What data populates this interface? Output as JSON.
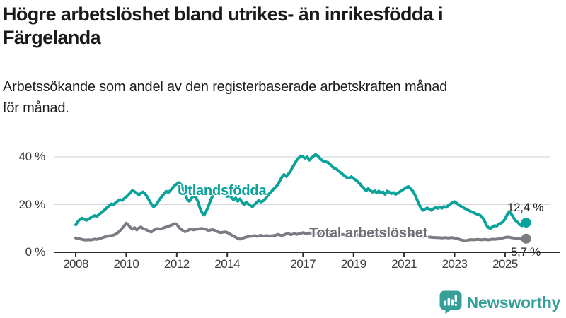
{
  "header": {
    "title_lines": [
      "Högre arbetslöshet bland utrikes- än inrikesfödda i",
      "Färgelanda"
    ],
    "subtitle_lines": [
      "Arbetssökande som andel av den registerbaserade arbetskraften månad",
      "för månad."
    ]
  },
  "chart_data": {
    "type": "line",
    "title": "Högre arbetslöshet bland utrikes- än inrikesfödda i Färgelanda",
    "subtitle": "Arbetssökande som andel av den registerbaserade arbetskraften månad för månad.",
    "frequency": "monthly",
    "x_start": "2008-01",
    "x_end": "2025-11",
    "x_tick_labels": [
      "2008",
      "2010",
      "2012",
      "2014",
      "2017",
      "2019",
      "2021",
      "2023",
      "2025"
    ],
    "y_ticks": [
      0,
      20,
      40
    ],
    "y_tick_labels": [
      "0 %",
      "20 %",
      "40 %"
    ],
    "ylim": [
      0,
      45
    ],
    "unit": "%",
    "grid": "horizontal",
    "legend_position": "inline-labels",
    "series": [
      {
        "name": "Total arbetslöshet",
        "color": "#7b7b83",
        "end_value": 5.7,
        "end_label": "5,7 %",
        "values": [
          6.0,
          5.8,
          5.6,
          5.4,
          5.2,
          5.1,
          5.3,
          5.1,
          5.3,
          5.5,
          5.4,
          5.6,
          5.9,
          6.2,
          6.5,
          6.7,
          6.9,
          7.0,
          7.2,
          7.6,
          8.2,
          9.0,
          10.0,
          11.0,
          12.2,
          11.5,
          10.4,
          9.7,
          10.3,
          9.4,
          10.2,
          10.6,
          9.9,
          9.7,
          9.2,
          8.7,
          8.5,
          9.2,
          9.7,
          10.0,
          9.7,
          9.9,
          10.3,
          10.6,
          10.9,
          11.2,
          11.6,
          12.0,
          11.8,
          10.5,
          9.7,
          9.1,
          8.6,
          9.0,
          9.5,
          9.7,
          9.4,
          9.6,
          9.7,
          9.9,
          10.0,
          9.8,
          9.6,
          9.1,
          9.3,
          9.5,
          9.2,
          8.8,
          8.4,
          8.2,
          8.4,
          8.5,
          8.3,
          7.8,
          7.2,
          6.8,
          6.3,
          5.8,
          5.5,
          5.7,
          6.1,
          6.4,
          6.6,
          6.7,
          6.8,
          7.0,
          6.7,
          6.9,
          7.1,
          6.8,
          6.9,
          7.0,
          6.8,
          6.9,
          7.0,
          7.1,
          7.5,
          7.2,
          7.0,
          7.3,
          7.7,
          7.9,
          7.4,
          7.6,
          7.8,
          7.5,
          7.7,
          8.0,
          8.2,
          8.0,
          7.9,
          8.1,
          8.0,
          7.8,
          7.9,
          8.0,
          7.8,
          7.7,
          7.8,
          7.9,
          7.8,
          7.6,
          7.5,
          7.6,
          7.4,
          7.3,
          7.4,
          7.5,
          7.3,
          7.2,
          7.3,
          7.4,
          7.3,
          7.2,
          7.3,
          7.4,
          7.2,
          7.1,
          7.2,
          7.3,
          7.2,
          7.1,
          7.2,
          7.3,
          7.4,
          7.5,
          7.8,
          8.2,
          8.4,
          8.5,
          8.4,
          8.3,
          8.2,
          8.0,
          7.9,
          7.8,
          7.7,
          7.6,
          7.5,
          7.4,
          7.3,
          7.2,
          7.0,
          6.9,
          6.8,
          6.7,
          6.6,
          6.5,
          6.4,
          6.3,
          6.2,
          6.2,
          6.1,
          6.1,
          6.0,
          6.1,
          6.1,
          6.0,
          6.1,
          6.1,
          6.0,
          5.8,
          5.5,
          5.2,
          5.0,
          4.9,
          5.0,
          5.2,
          5.3,
          5.2,
          5.3,
          5.4,
          5.3,
          5.2,
          5.4,
          5.3,
          5.2,
          5.3,
          5.5,
          5.4,
          5.5,
          5.6,
          5.8,
          6.0,
          6.2,
          6.4,
          6.3,
          6.1,
          6.0,
          5.9,
          5.8,
          5.6,
          5.5,
          5.5,
          5.7
        ]
      },
      {
        "name": "Utlandsfödda",
        "color": "#0aa29a",
        "end_value": 12.4,
        "end_label": "12,4 %",
        "values": [
          11.5,
          12.8,
          13.8,
          14.3,
          13.9,
          13.4,
          13.8,
          14.4,
          15.0,
          15.4,
          15.0,
          15.8,
          16.5,
          17.2,
          18.0,
          18.8,
          19.6,
          20.3,
          20.0,
          20.8,
          21.5,
          22.1,
          21.7,
          22.5,
          23.2,
          24.1,
          25.0,
          26.0,
          25.4,
          24.7,
          24.1,
          24.7,
          25.3,
          24.5,
          23.2,
          21.6,
          20.2,
          19.0,
          19.8,
          21.0,
          22.3,
          23.5,
          24.6,
          25.6,
          25.0,
          26.0,
          27.0,
          28.0,
          28.6,
          29.2,
          28.4,
          26.5,
          24.2,
          22.2,
          21.4,
          22.6,
          23.8,
          23.0,
          21.4,
          18.6,
          16.6,
          15.6,
          17.2,
          19.2,
          21.6,
          23.6,
          25.6,
          26.6,
          27.0,
          26.0,
          25.0,
          24.2,
          23.4,
          24.0,
          23.0,
          22.0,
          22.8,
          21.4,
          22.4,
          21.0,
          20.0,
          21.0,
          20.2,
          19.6,
          19.1,
          20.1,
          20.9,
          21.8,
          21.1,
          21.5,
          22.3,
          23.5,
          24.6,
          25.5,
          26.5,
          27.4,
          28.3,
          30.0,
          31.6,
          32.6,
          31.8,
          32.8,
          34.0,
          35.6,
          37.0,
          38.6,
          39.6,
          40.4,
          40.0,
          39.4,
          40.0,
          38.6,
          39.6,
          40.3,
          41.0,
          40.4,
          39.4,
          38.6,
          38.0,
          37.9,
          37.6,
          36.8,
          35.8,
          35.2,
          34.8,
          34.0,
          33.3,
          32.6,
          31.8,
          31.3,
          31.2,
          31.7,
          30.9,
          30.3,
          29.6,
          28.8,
          27.6,
          26.7,
          25.8,
          26.7,
          25.9,
          25.2,
          25.8,
          24.9,
          25.7,
          24.9,
          25.3,
          24.3,
          25.7,
          25.2,
          24.6,
          25.1,
          24.3,
          24.8,
          25.4,
          26.0,
          26.5,
          27.1,
          27.6,
          26.8,
          25.9,
          24.4,
          22.4,
          20.4,
          18.6,
          17.6,
          18.1,
          18.6,
          18.1,
          17.6,
          18.3,
          18.8,
          18.4,
          19.0,
          18.5,
          19.2,
          18.8,
          19.6,
          20.2,
          21.0,
          21.2,
          20.6,
          19.9,
          19.3,
          18.8,
          18.3,
          17.9,
          17.4,
          17.0,
          16.6,
          16.2,
          15.9,
          15.6,
          14.8,
          13.6,
          11.6,
          10.4,
          10.0,
          10.6,
          11.2,
          11.0,
          11.8,
          12.2,
          12.7,
          14.0,
          15.8,
          17.0,
          16.0,
          14.5,
          13.2,
          12.6,
          11.6,
          11.1,
          11.8,
          12.4
        ]
      }
    ]
  },
  "footer": {
    "brand": "Newsworthy",
    "logo_icon": "bar-chart-speech-bubble-icon",
    "brand_color": "#35a09a"
  }
}
